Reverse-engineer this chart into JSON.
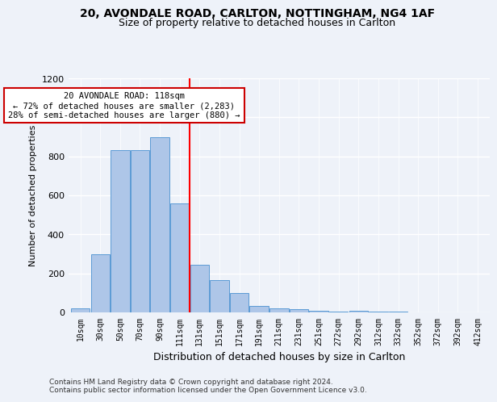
{
  "title1": "20, AVONDALE ROAD, CARLTON, NOTTINGHAM, NG4 1AF",
  "title2": "Size of property relative to detached houses in Carlton",
  "xlabel": "Distribution of detached houses by size in Carlton",
  "ylabel": "Number of detached properties",
  "bar_labels": [
    "10sqm",
    "30sqm",
    "50sqm",
    "70sqm",
    "90sqm",
    "111sqm",
    "131sqm",
    "151sqm",
    "171sqm",
    "191sqm",
    "211sqm",
    "231sqm",
    "251sqm",
    "272sqm",
    "292sqm",
    "312sqm",
    "332sqm",
    "352sqm",
    "372sqm",
    "392sqm",
    "412sqm"
  ],
  "bar_heights": [
    20,
    300,
    830,
    830,
    900,
    560,
    245,
    165,
    100,
    35,
    20,
    15,
    10,
    5,
    10,
    5,
    5,
    0,
    0,
    0,
    0
  ],
  "bar_color": "#aec6e8",
  "bar_edge_color": "#5b9bd5",
  "red_line_x": 5.5,
  "annotation_text": "20 AVONDALE ROAD: 118sqm\n← 72% of detached houses are smaller (2,283)\n28% of semi-detached houses are larger (880) →",
  "ylim": [
    0,
    1200
  ],
  "yticks": [
    0,
    200,
    400,
    600,
    800,
    1000,
    1200
  ],
  "footer1": "Contains HM Land Registry data © Crown copyright and database right 2024.",
  "footer2": "Contains public sector information licensed under the Open Government Licence v3.0.",
  "background_color": "#eef2f9",
  "grid_color": "#ffffff",
  "title1_fontsize": 10,
  "title2_fontsize": 9,
  "annotation_box_color": "#ffffff",
  "annotation_box_edge": "#cc0000"
}
